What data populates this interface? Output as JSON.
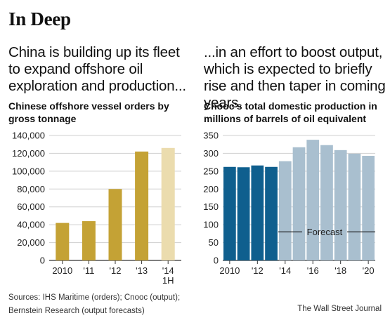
{
  "title": "In Deep",
  "left_intro": "China is building up its fleet to expand offshore oil exploration and production...",
  "right_intro": "...in an effort to boost output, which is expected to briefly rise and then taper in coming years.",
  "left_chart_title": "Chinese offshore vessel orders by gross tonnage",
  "right_chart_title": "Cnooc's total domestic production in millions of barrels of oil equivalent",
  "source_line1": "Sources: IHS Maritime (orders); Cnooc (output);",
  "source_line2": "Bernstein Research (output forecasts)",
  "credit": "The Wall Street Journal",
  "colors": {
    "gold": "#c4a235",
    "gold_light": "#ebdcae",
    "blue_dark": "#0f5f8e",
    "blue_light": "#a9bfcf",
    "grid": "#cfcfcf",
    "axis": "#333333"
  },
  "chart_data": [
    {
      "type": "bar",
      "title": "Chinese offshore vessel orders by gross tonnage",
      "categories": [
        "2010",
        "'11",
        "'12",
        "'13",
        "'14 1H"
      ],
      "category_labels": [
        [
          "2010"
        ],
        [
          "'11"
        ],
        [
          "'12"
        ],
        [
          "'13"
        ],
        [
          "'14",
          "1H"
        ]
      ],
      "values": [
        42000,
        44000,
        80000,
        122000,
        126000
      ],
      "highlight": [
        false,
        false,
        false,
        false,
        true
      ],
      "ylim": [
        0,
        140000
      ],
      "yticks": [
        0,
        20000,
        40000,
        60000,
        80000,
        100000,
        120000,
        140000
      ],
      "ytick_labels": [
        "0",
        "20,000",
        "40,000",
        "60,000",
        "80,000",
        "100,000",
        "120,000",
        "140,000"
      ],
      "grid": true
    },
    {
      "type": "bar",
      "title": "Cnooc's total domestic production in millions of barrels of oil equivalent",
      "years": [
        2010,
        2011,
        2012,
        2013,
        2014,
        2015,
        2016,
        2017,
        2018,
        2019,
        2020
      ],
      "values": [
        262,
        261,
        266,
        262,
        278,
        317,
        338,
        323,
        309,
        299,
        293
      ],
      "forecast": [
        false,
        false,
        false,
        false,
        true,
        true,
        true,
        true,
        true,
        true,
        true
      ],
      "x_tick_labels": [
        "2010",
        "'12",
        "'14",
        "'16",
        "'18",
        "'20"
      ],
      "x_tick_years": [
        2010,
        2012,
        2014,
        2016,
        2018,
        2020
      ],
      "ylim": [
        0,
        350
      ],
      "yticks": [
        0,
        50,
        100,
        150,
        200,
        250,
        300,
        350
      ],
      "ytick_labels": [
        "0",
        "50",
        "100",
        "150",
        "200",
        "250",
        "300",
        "350"
      ],
      "annotation": "Forecast",
      "grid": true
    }
  ]
}
